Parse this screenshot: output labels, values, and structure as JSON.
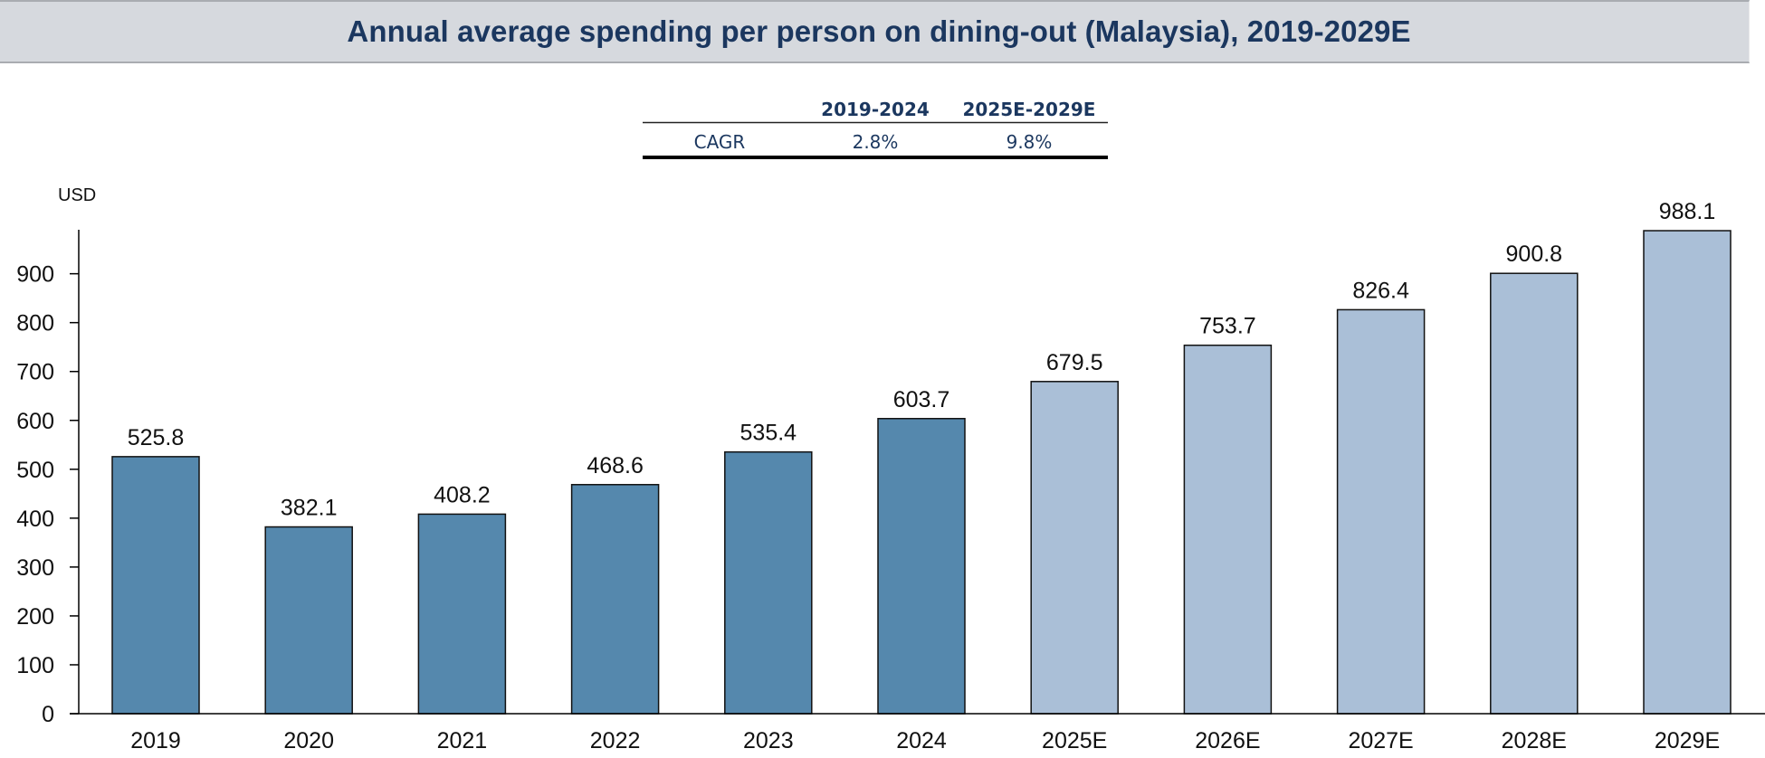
{
  "title": "Annual average spending per person on dining-out (Malaysia), 2019-2029E",
  "cagr_table": {
    "headers": [
      "",
      "2019-2024",
      "2025E-2029E"
    ],
    "rows": [
      {
        "label": "CAGR",
        "values": [
          "2.8%",
          "9.8%"
        ]
      }
    ]
  },
  "colors": {
    "historical": "#5588ad",
    "forecast": "#aabfd7",
    "title_band": "#d6d9de",
    "title_text": "#1b375f"
  },
  "chart_data": {
    "type": "bar",
    "title": "Annual average spending per person on dining-out (Malaysia), 2019-2029E",
    "xlabel": "",
    "ylabel": "USD",
    "ylim": [
      0,
      990
    ],
    "yticks": [
      0,
      100,
      200,
      300,
      400,
      500,
      600,
      700,
      800,
      900
    ],
    "grid": false,
    "categories": [
      "2019",
      "2020",
      "2021",
      "2022",
      "2023",
      "2024",
      "2025E",
      "2026E",
      "2027E",
      "2028E",
      "2029E"
    ],
    "values": [
      525.8,
      382.1,
      408.2,
      468.6,
      535.4,
      603.7,
      679.5,
      753.7,
      826.4,
      900.8,
      988.1
    ],
    "data_labels": [
      "525.8",
      "382.1",
      "408.2",
      "468.6",
      "535.4",
      "603.7",
      "679.5",
      "753.7",
      "826.4",
      "900.8",
      "988.1"
    ],
    "bar_kind": [
      "historical",
      "historical",
      "historical",
      "historical",
      "historical",
      "historical",
      "forecast",
      "forecast",
      "forecast",
      "forecast",
      "forecast"
    ]
  }
}
